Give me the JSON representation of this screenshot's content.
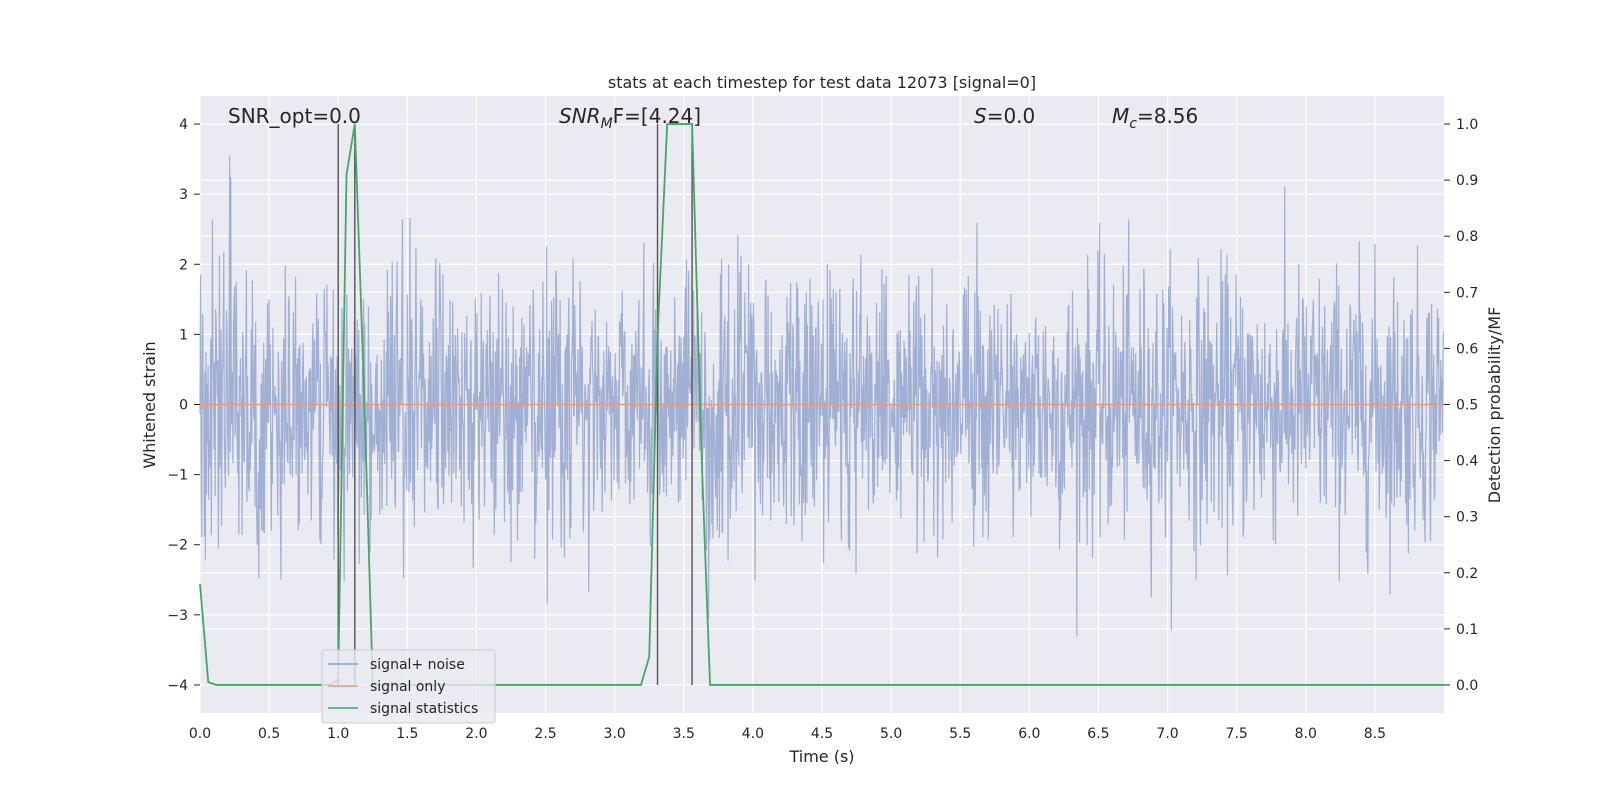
{
  "chart_data": {
    "type": "line",
    "title": "stats at each timestep for test data 12073 [signal=0]",
    "xlabel": "Time (s)",
    "ylabel_left": "Whitened strain",
    "ylabel_right": "Detection probability/MF",
    "xlim": [
      0.0,
      9.0
    ],
    "ylim_left": [
      -4.4,
      4.4
    ],
    "ylim_right": [
      -0.05,
      1.05
    ],
    "x_ticks": [
      "0.0",
      "0.5",
      "1.0",
      "1.5",
      "2.0",
      "2.5",
      "3.0",
      "3.5",
      "4.0",
      "4.5",
      "5.0",
      "5.5",
      "6.0",
      "6.5",
      "7.0",
      "7.5",
      "8.0",
      "8.5"
    ],
    "y_ticks_left": [
      "−4",
      "−3",
      "−2",
      "−1",
      "0",
      "1",
      "2",
      "3",
      "4"
    ],
    "y_ticks_right": [
      "0.0",
      "0.1",
      "0.2",
      "0.3",
      "0.4",
      "0.5",
      "0.6",
      "0.7",
      "0.8",
      "0.9",
      "1.0"
    ],
    "grid": true,
    "legend_position": "lower-left",
    "annotations": {
      "snr_opt": "SNR_opt=0.0",
      "snr_mf_main": "SNR",
      "snr_mf_sub": "M",
      "snr_mf_rest": "F=[4.24]",
      "s_main": "S",
      "s_rest": "=0.0",
      "mc_main": "M",
      "mc_sub": "c",
      "mc_rest": "=8.56"
    },
    "series": [
      {
        "name": "signal+ noise",
        "color": "#8da0cb",
        "description_kind": "noise",
        "sample_rate": 256,
        "duration_s": 9.0,
        "amplitude_std": 0.95
      },
      {
        "name": "signal only",
        "color": "#e8997a",
        "x": [
          0.0,
          9.0
        ],
        "y": [
          0.0,
          0.0
        ]
      },
      {
        "name": "signal statistics",
        "color": "#4aa564",
        "axis": "right",
        "x": [
          0.0,
          0.06,
          0.12,
          0.94,
          1.0,
          1.06,
          1.12,
          1.19,
          1.25,
          1.31,
          3.19,
          3.25,
          3.31,
          3.38,
          3.44,
          3.5,
          3.56,
          3.63,
          3.69,
          9.0
        ],
        "y": [
          0.18,
          0.005,
          0.0,
          0.0,
          0.01,
          0.91,
          1.0,
          0.5,
          0.0,
          0.0,
          0.0,
          0.05,
          0.62,
          1.0,
          1.0,
          1.0,
          1.0,
          0.4,
          0.0,
          0.0
        ]
      }
    ],
    "vertical_markers_s": [
      1.0,
      1.12,
      3.31,
      3.56
    ]
  }
}
